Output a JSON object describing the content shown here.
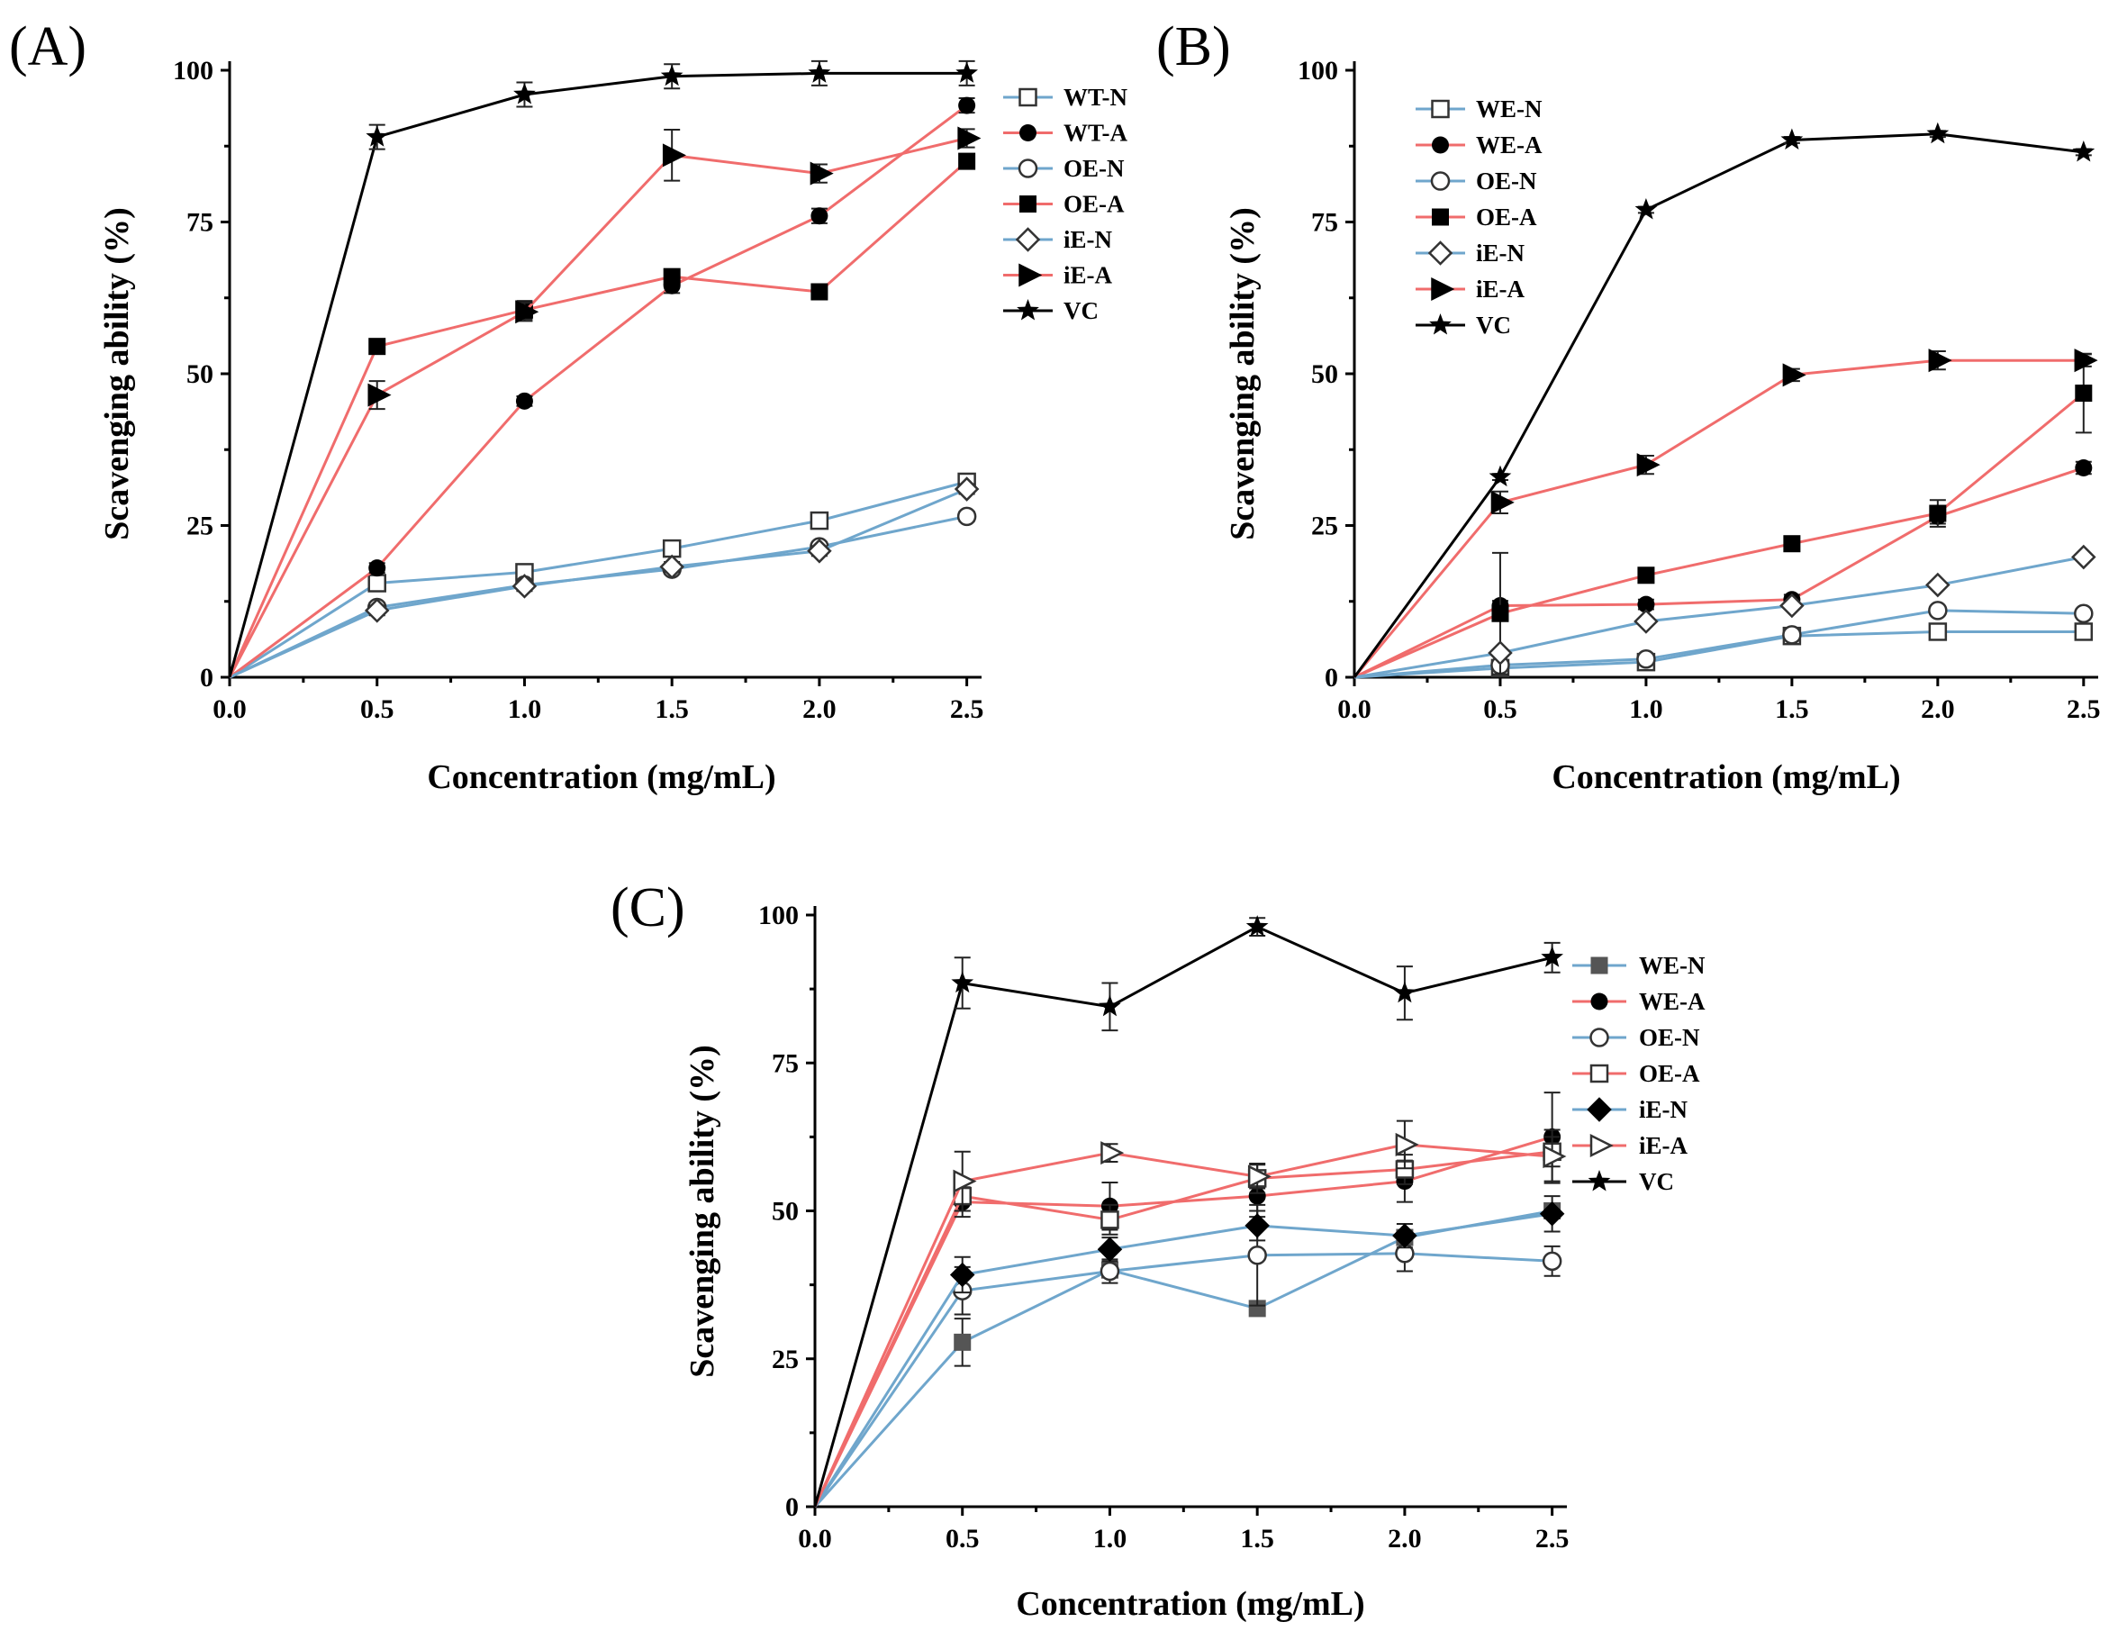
{
  "colors": {
    "N": "#6fa6cc",
    "A": "#f06c6c",
    "VC": "#000000"
  },
  "chart_data": [
    {
      "panel": "(A)",
      "type": "line",
      "xlabel": "Concentration (mg/mL)",
      "ylabel": "Scavenging ability (%)",
      "xlim": [
        0,
        2.55
      ],
      "ylim": [
        0,
        100
      ],
      "xticks": [
        "0.0",
        "0.5",
        "1.0",
        "1.5",
        "2.0",
        "2.5"
      ],
      "yticks": [
        "0",
        "25",
        "50",
        "75",
        "100"
      ],
      "legend_position": "right",
      "x": [
        0,
        0.5,
        1.0,
        1.5,
        2.0,
        2.5
      ],
      "series": [
        {
          "name": "WT-N",
          "color": "N",
          "marker": "square-open",
          "values": [
            0,
            15.5,
            17.3,
            21.2,
            25.8,
            32.2
          ],
          "err": [
            0,
            0.8,
            0.8,
            0.8,
            0.8,
            0.8
          ]
        },
        {
          "name": "WT-A",
          "color": "A",
          "marker": "circle-filled",
          "values": [
            0,
            18.0,
            45.5,
            64.5,
            76.0,
            94.2
          ],
          "err": [
            0,
            0.8,
            0.8,
            1.2,
            1.2,
            1.2
          ]
        },
        {
          "name": "OE-N",
          "color": "N",
          "marker": "circle-open",
          "values": [
            0,
            11.5,
            15.2,
            17.8,
            21.5,
            26.5
          ],
          "err": [
            0,
            0.8,
            0.8,
            0.8,
            0.8,
            0.8
          ]
        },
        {
          "name": "OE-A",
          "color": "A",
          "marker": "square-filled",
          "values": [
            0,
            54.5,
            60.5,
            66.0,
            63.5,
            85.0
          ],
          "err": [
            0,
            1.2,
            1.5,
            1.2,
            1.2,
            1.2
          ]
        },
        {
          "name": "iE-N",
          "color": "N",
          "marker": "diamond-open",
          "values": [
            0,
            11.0,
            15.0,
            18.2,
            20.8,
            31.0
          ],
          "err": [
            0,
            0.8,
            0.8,
            0.8,
            0.8,
            0.8
          ]
        },
        {
          "name": "iE-A",
          "color": "A",
          "marker": "triangle-filled",
          "values": [
            0,
            46.5,
            60.2,
            86.0,
            83.0,
            88.8
          ],
          "err": [
            0,
            2.3,
            1.5,
            4.2,
            1.5,
            1.5
          ]
        },
        {
          "name": "VC",
          "color": "VC",
          "marker": "star",
          "values": [
            0,
            89.0,
            96.0,
            99.0,
            99.5,
            99.5
          ],
          "err": [
            0,
            2.0,
            2.0,
            2.0,
            2.0,
            2.0
          ]
        }
      ]
    },
    {
      "panel": "(B)",
      "type": "line",
      "xlabel": "Concentration (mg/mL)",
      "ylabel": "Scavenging ability (%)",
      "xlim": [
        0,
        2.55
      ],
      "ylim": [
        0,
        100
      ],
      "xticks": [
        "0.0",
        "0.5",
        "1.0",
        "1.5",
        "2.0",
        "2.5"
      ],
      "yticks": [
        "0",
        "25",
        "50",
        "75",
        "100"
      ],
      "legend_position": "top-left",
      "x": [
        0,
        0.5,
        1.0,
        1.5,
        2.0,
        2.5
      ],
      "series": [
        {
          "name": "WE-N",
          "color": "N",
          "marker": "square-open",
          "values": [
            0,
            1.5,
            2.5,
            6.8,
            7.5,
            7.5
          ],
          "err": [
            0,
            0.5,
            0.5,
            0.5,
            0.5,
            0.5
          ]
        },
        {
          "name": "WE-A",
          "color": "A",
          "marker": "circle-filled",
          "values": [
            0,
            11.8,
            12.0,
            12.8,
            26.5,
            34.5
          ],
          "err": [
            0,
            0.8,
            0.8,
            0.8,
            1.2,
            1.0
          ]
        },
        {
          "name": "OE-N",
          "color": "N",
          "marker": "circle-open",
          "values": [
            0,
            2.0,
            3.0,
            7.0,
            11.0,
            10.5
          ],
          "err": [
            0,
            0.5,
            0.5,
            0.5,
            0.5,
            0.5
          ]
        },
        {
          "name": "OE-A",
          "color": "A",
          "marker": "square-filled",
          "values": [
            0,
            10.5,
            16.8,
            22.0,
            27.0,
            46.8
          ],
          "err": [
            0,
            10.0,
            1.2,
            1.2,
            2.2,
            6.5
          ]
        },
        {
          "name": "iE-N",
          "color": "N",
          "marker": "diamond-open",
          "values": [
            0,
            4.0,
            9.2,
            11.8,
            15.2,
            19.8
          ],
          "err": [
            0,
            0.5,
            0.5,
            0.5,
            0.5,
            0.5
          ]
        },
        {
          "name": "iE-A",
          "color": "A",
          "marker": "triangle-filled",
          "values": [
            0,
            28.8,
            35.0,
            49.8,
            52.2,
            52.2
          ],
          "err": [
            0,
            1.8,
            1.5,
            1.0,
            1.5,
            1.0
          ]
        },
        {
          "name": "VC",
          "color": "VC",
          "marker": "star",
          "values": [
            0,
            33.0,
            77.0,
            88.5,
            89.5,
            86.5
          ],
          "err": [
            0,
            0.5,
            0.5,
            0.5,
            0.5,
            0.5
          ]
        }
      ]
    },
    {
      "panel": "(C)",
      "type": "line",
      "xlabel": "Concentration (mg/mL)",
      "ylabel": "Scavenging ability (%)",
      "xlim": [
        0,
        2.55
      ],
      "ylim": [
        0,
        100
      ],
      "xticks": [
        "0.0",
        "0.5",
        "1.0",
        "1.5",
        "2.0",
        "2.5"
      ],
      "yticks": [
        "0",
        "25",
        "50",
        "75",
        "100"
      ],
      "legend_position": "right",
      "x": [
        0,
        0.5,
        1.0,
        1.5,
        2.0,
        2.5
      ],
      "series": [
        {
          "name": "WE-N",
          "color": "N",
          "marker": "square-filled-gray",
          "values": [
            0,
            27.8,
            40.0,
            33.5,
            45.5,
            50.0
          ],
          "err": [
            0,
            4.0,
            1.0,
            1.0,
            1.0,
            1.0
          ]
        },
        {
          "name": "WE-A",
          "color": "A",
          "marker": "circle-filled",
          "values": [
            0,
            51.5,
            50.8,
            52.5,
            55.0,
            62.5
          ],
          "err": [
            0,
            2.5,
            4.0,
            3.5,
            3.5,
            7.5
          ]
        },
        {
          "name": "OE-N",
          "color": "N",
          "marker": "circle-open",
          "values": [
            0,
            36.5,
            39.8,
            42.5,
            42.8,
            41.5
          ],
          "err": [
            0,
            4.0,
            2.0,
            8.5,
            3.0,
            2.5
          ]
        },
        {
          "name": "OE-A",
          "color": "A",
          "marker": "square-open",
          "values": [
            0,
            52.5,
            48.5,
            55.5,
            57.0,
            60.0
          ],
          "err": [
            0,
            2.5,
            2.5,
            2.5,
            2.5,
            2.5
          ]
        },
        {
          "name": "iE-N",
          "color": "N",
          "marker": "diamond-filled",
          "values": [
            0,
            39.2,
            43.5,
            47.5,
            45.8,
            49.5
          ],
          "err": [
            0,
            3.0,
            2.0,
            2.5,
            2.0,
            3.0
          ]
        },
        {
          "name": "iE-A",
          "color": "A",
          "marker": "triangle-open",
          "values": [
            0,
            55.0,
            59.8,
            55.8,
            61.2,
            59.2
          ],
          "err": [
            0,
            5.0,
            1.5,
            2.0,
            4.0,
            4.5
          ]
        },
        {
          "name": "VC",
          "color": "VC",
          "marker": "star",
          "values": [
            0,
            88.5,
            84.5,
            98.0,
            86.8,
            92.8
          ],
          "err": [
            0,
            4.3,
            4.0,
            1.5,
            4.5,
            2.5
          ]
        }
      ]
    }
  ]
}
